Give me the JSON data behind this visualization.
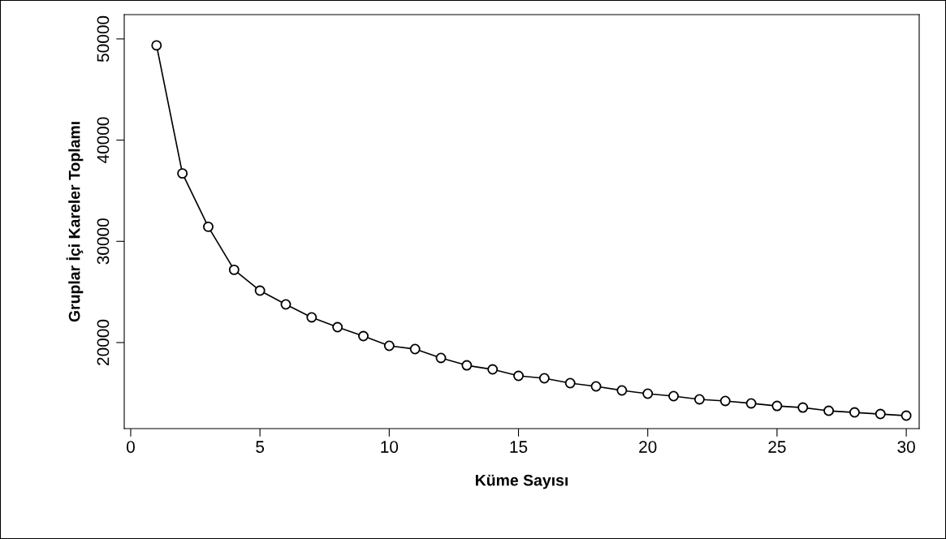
{
  "chart_data": {
    "type": "line",
    "xlabel": "Küme Sayısı",
    "ylabel": "Gruplar İçi Kareler Toplamı",
    "x": [
      1,
      2,
      3,
      4,
      5,
      6,
      7,
      8,
      9,
      10,
      11,
      12,
      13,
      14,
      15,
      16,
      17,
      18,
      19,
      20,
      21,
      22,
      23,
      24,
      25,
      26,
      27,
      28,
      29,
      30
    ],
    "series": [
      {
        "color": "#000000",
        "values": [
          49360,
          36710,
          31440,
          27190,
          25130,
          23770,
          22490,
          21520,
          20640,
          19680,
          19360,
          18480,
          17750,
          17350,
          16710,
          16470,
          15990,
          15670,
          15270,
          14950,
          14710,
          14390,
          14230,
          13990,
          13740,
          13580,
          13260,
          13100,
          12940,
          12780
        ]
      }
    ],
    "xlim": [
      -0.25,
      30.5
    ],
    "ylim": [
      11500,
      52400
    ],
    "xticks": [
      0,
      5,
      10,
      15,
      20,
      25,
      30
    ],
    "yticks": [
      20000,
      30000,
      40000,
      50000
    ],
    "marker": "circle",
    "line_style": "solid",
    "grid": false,
    "legend": false
  }
}
